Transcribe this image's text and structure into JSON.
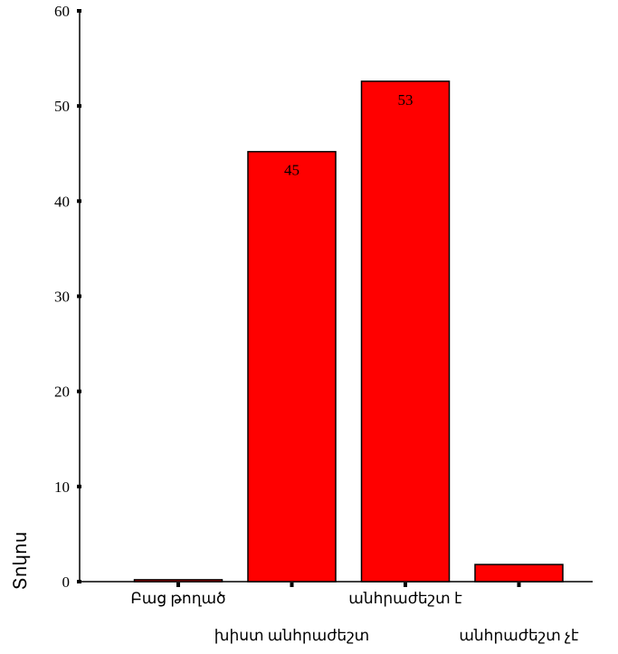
{
  "chart_data": {
    "type": "bar",
    "title": "",
    "ylabel": "Տոկոս",
    "xlabel": "",
    "categories": [
      "Բաց թողած",
      "խիստ անհրաժեշտ",
      "անհրաժեշտ է",
      "անհրաժեշտ չէ"
    ],
    "values": [
      0.2,
      45.2,
      52.6,
      1.8
    ],
    "data_labels": [
      "",
      "45",
      "53",
      ""
    ],
    "ylim": [
      0,
      60
    ],
    "yticks": [
      0,
      10,
      20,
      30,
      40,
      50,
      60
    ],
    "grid": false,
    "legend": "none",
    "bar_color": "#ff0000",
    "bar_stroke": "#000000"
  }
}
